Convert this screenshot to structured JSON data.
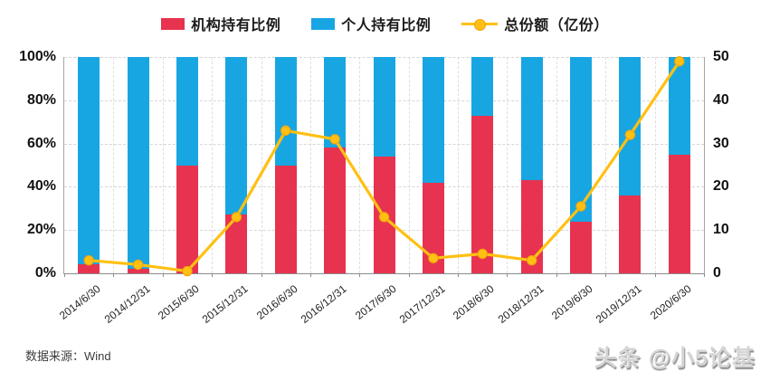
{
  "legend": {
    "institutional_label": "机构持有比例",
    "individual_label": "个人持有比例",
    "total_shares_label": "总份额（亿份）"
  },
  "footer": {
    "source": "数据来源：Wind"
  },
  "watermark": "头条 @小5论基",
  "colors": {
    "institutional": "#e7334f",
    "individual": "#18a6e2",
    "line": "#ffc013",
    "line_marker_edge": "#efa20b",
    "grid": "#d9d9d9",
    "axis": "#8c8c8c"
  },
  "chart_data": {
    "type": "bar",
    "subtype": "stacked-bar-with-line-combo",
    "categories": [
      "2014/6/30",
      "2014/12/31",
      "2015/6/30",
      "2015/12/31",
      "2016/6/30",
      "2016/12/31",
      "2017/6/30",
      "2017/12/31",
      "2018/6/30",
      "2018/12/31",
      "2019/6/30",
      "2019/12/31",
      "2020/6/30"
    ],
    "series": [
      {
        "name": "机构持有比例",
        "type": "bar",
        "stack": "holders",
        "axis": "left",
        "unit": "%",
        "values": [
          4,
          2,
          50,
          27,
          50,
          58,
          54,
          42,
          73,
          43,
          24,
          36,
          55
        ]
      },
      {
        "name": "个人持有比例",
        "type": "bar",
        "stack": "holders",
        "axis": "left",
        "unit": "%",
        "values": [
          96,
          98,
          50,
          73,
          50,
          42,
          46,
          58,
          27,
          57,
          76,
          64,
          45
        ]
      },
      {
        "name": "总份额（亿份）",
        "type": "line",
        "axis": "right",
        "unit": "亿份",
        "values": [
          3,
          2,
          0.5,
          13,
          33,
          31,
          13,
          3.5,
          4.5,
          3,
          15.5,
          32,
          49
        ]
      }
    ],
    "left_axis": {
      "ticks": [
        "0%",
        "20%",
        "40%",
        "60%",
        "80%",
        "100%"
      ],
      "min": 0,
      "max": 100
    },
    "right_axis": {
      "ticks": [
        "0",
        "10",
        "20",
        "30",
        "40",
        "50"
      ],
      "min": 0,
      "max": 50
    },
    "grid": {
      "horizontal": "dashed",
      "vertical": "dashed-at-category-boundaries"
    },
    "legend_position": "top",
    "title": ""
  }
}
